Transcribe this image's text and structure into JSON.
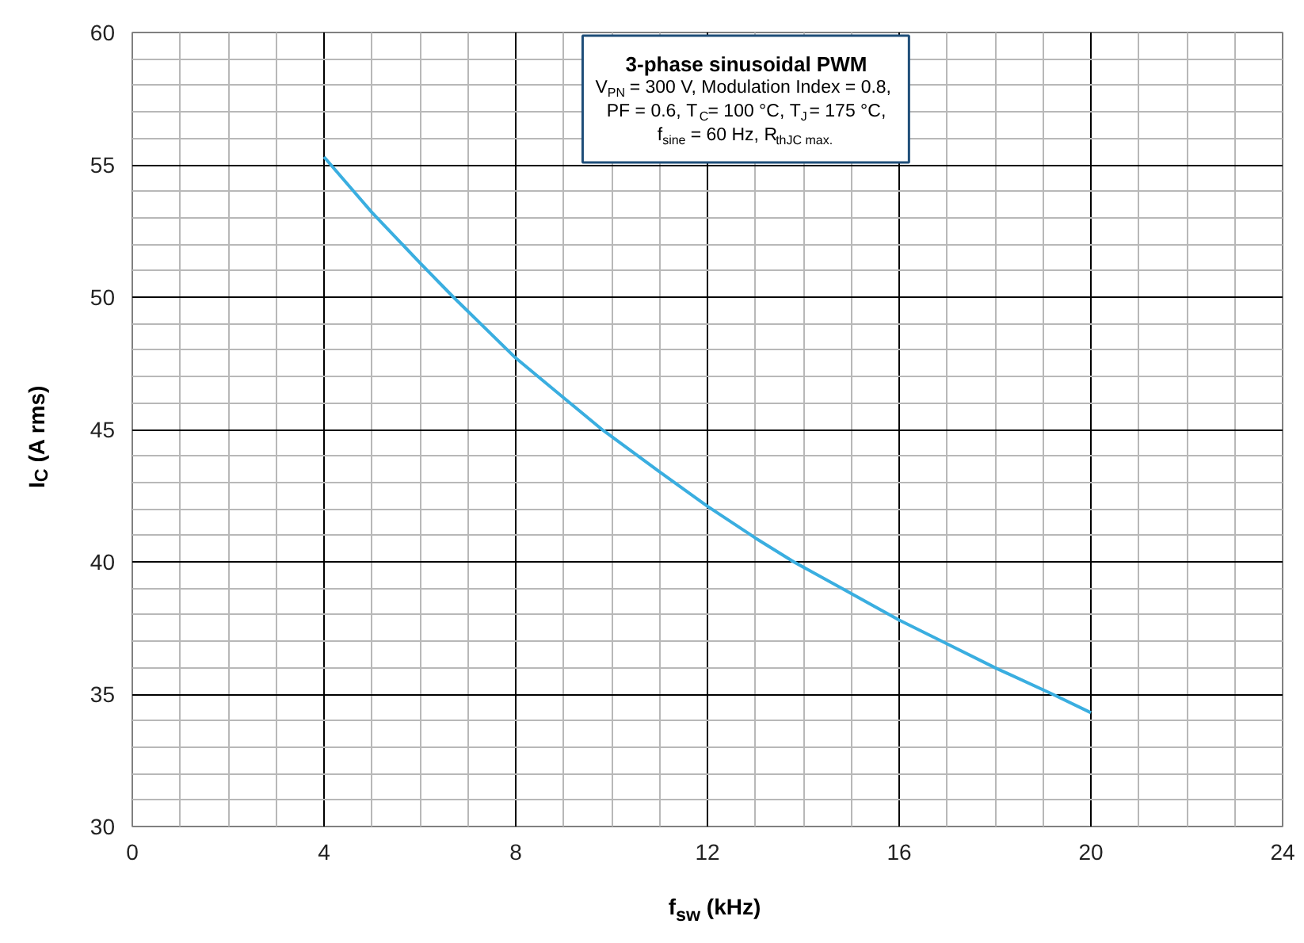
{
  "chart_data": {
    "type": "line",
    "xlabel": "f$_{sw}$ (kHz)",
    "ylabel": "I$_{C}$ (A rms)",
    "annotations": [
      "3-phase sinusoidal PWM",
      "V$_{PN}$ = 300 V, Modulation Index = 0.8,",
      "PF = 0.6, T$_{C}$= 100 °C, T$_{J}$= 175 °C,",
      "f$_{sine}$ = 60 Hz, R$_{thJC max.}$"
    ],
    "x": [
      4,
      5,
      6,
      6.7,
      8,
      9,
      9.8,
      11,
      12,
      13,
      13.8,
      15,
      16,
      17,
      18,
      19.2,
      20
    ],
    "series": [
      {
        "color": "#3aaee0",
        "values": [
          55.3,
          53.2,
          51.3,
          50.0,
          47.7,
          46.2,
          45.0,
          43.4,
          42.1,
          40.9,
          40.0,
          38.8,
          37.8,
          36.9,
          36.0,
          35.0,
          34.3
        ]
      }
    ],
    "xlim": [
      0,
      24
    ],
    "xticks": [
      0,
      4,
      8,
      12,
      16,
      20,
      24
    ],
    "ylim": [
      30,
      60
    ],
    "yticks": [
      30,
      35,
      40,
      45,
      50,
      55,
      60
    ],
    "grid": true,
    "marker": "none",
    "line_style": "solid"
  }
}
